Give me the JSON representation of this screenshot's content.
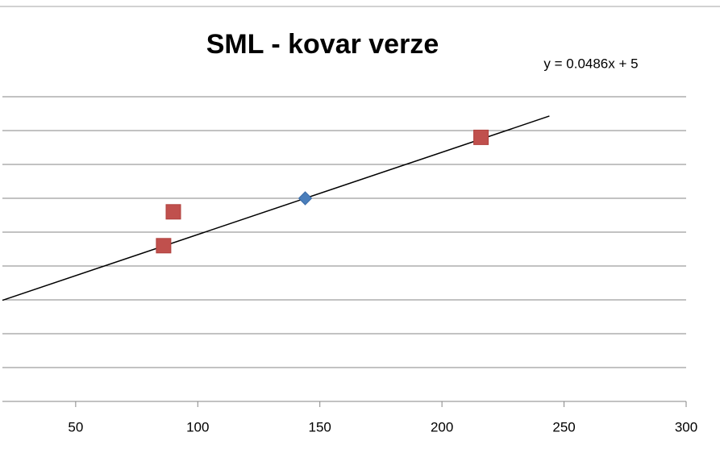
{
  "chart_data": {
    "type": "scatter",
    "title": "SML - kovar verze",
    "series": [
      {
        "color": "#4a7ebb",
        "marker": "diamond",
        "x": [
          144
        ],
        "values": [
          12.0
        ]
      },
      {
        "color": "#c0504d",
        "marker": "square",
        "x": [
          216,
          90,
          86
        ],
        "values": [
          15.6,
          11.2,
          9.2
        ]
      }
    ],
    "trendline": {
      "label": "y = 0.0486x + 5",
      "slope": 0.0486,
      "intercept": 5,
      "x_range": [
        20,
        244
      ],
      "color": "#000000"
    },
    "xlim": [
      20,
      300
    ],
    "xticks": [
      50,
      100,
      150,
      200,
      250,
      300
    ],
    "ylim": [
      0,
      18
    ],
    "yticks": [
      0,
      2,
      4,
      6,
      8,
      10,
      12,
      14,
      16,
      18
    ],
    "grid": true
  }
}
